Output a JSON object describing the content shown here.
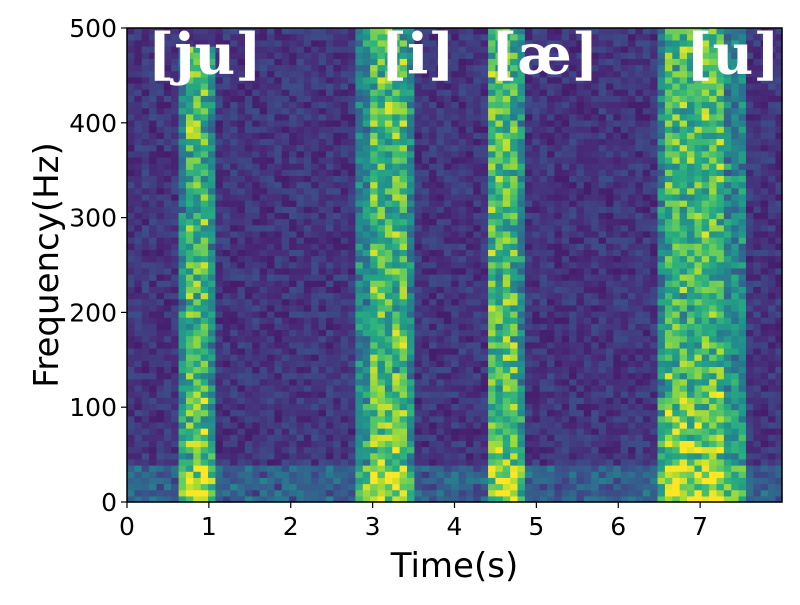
{
  "chart_data": {
    "type": "heatmap",
    "title": "",
    "xlabel": "Time(s)",
    "ylabel": "Frequency(Hz)",
    "xlim": [
      0,
      8
    ],
    "ylim": [
      0,
      500
    ],
    "x_ticks": [
      0,
      1,
      2,
      3,
      4,
      5,
      6,
      7
    ],
    "y_ticks": [
      0,
      100,
      200,
      300,
      400,
      500
    ],
    "colormap": "viridis",
    "grid": false,
    "legend": false,
    "annotations": [
      {
        "text": "[ju]",
        "x": 0.95,
        "y": 470
      },
      {
        "text": "[i]",
        "x": 3.55,
        "y": 470
      },
      {
        "text": "[æ]",
        "x": 5.1,
        "y": 470
      },
      {
        "text": "[u]",
        "x": 7.4,
        "y": 470
      }
    ],
    "energy_bands": [
      {
        "label": "[ju]",
        "t_start": 0.62,
        "t_end": 1.05,
        "peak_start": 0.7,
        "peak_end": 0.95,
        "max_freq": 480
      },
      {
        "label": "[i]",
        "t_start": 2.83,
        "t_end": 3.48,
        "peak_start": 2.95,
        "peak_end": 3.4,
        "max_freq": 500
      },
      {
        "label": "[æ]",
        "t_start": 4.4,
        "t_end": 4.9,
        "peak_start": 4.45,
        "peak_end": 4.75,
        "max_freq": 500
      },
      {
        "label": "[u]",
        "t_start": 6.5,
        "t_end": 7.55,
        "peak_start": 6.55,
        "peak_end": 7.3,
        "max_freq": 500
      }
    ]
  },
  "colors": {
    "viridis_low": "#440154",
    "viridis_mid": "#21918c",
    "viridis_high": "#fde725",
    "annotation_text": "#ffffff"
  }
}
